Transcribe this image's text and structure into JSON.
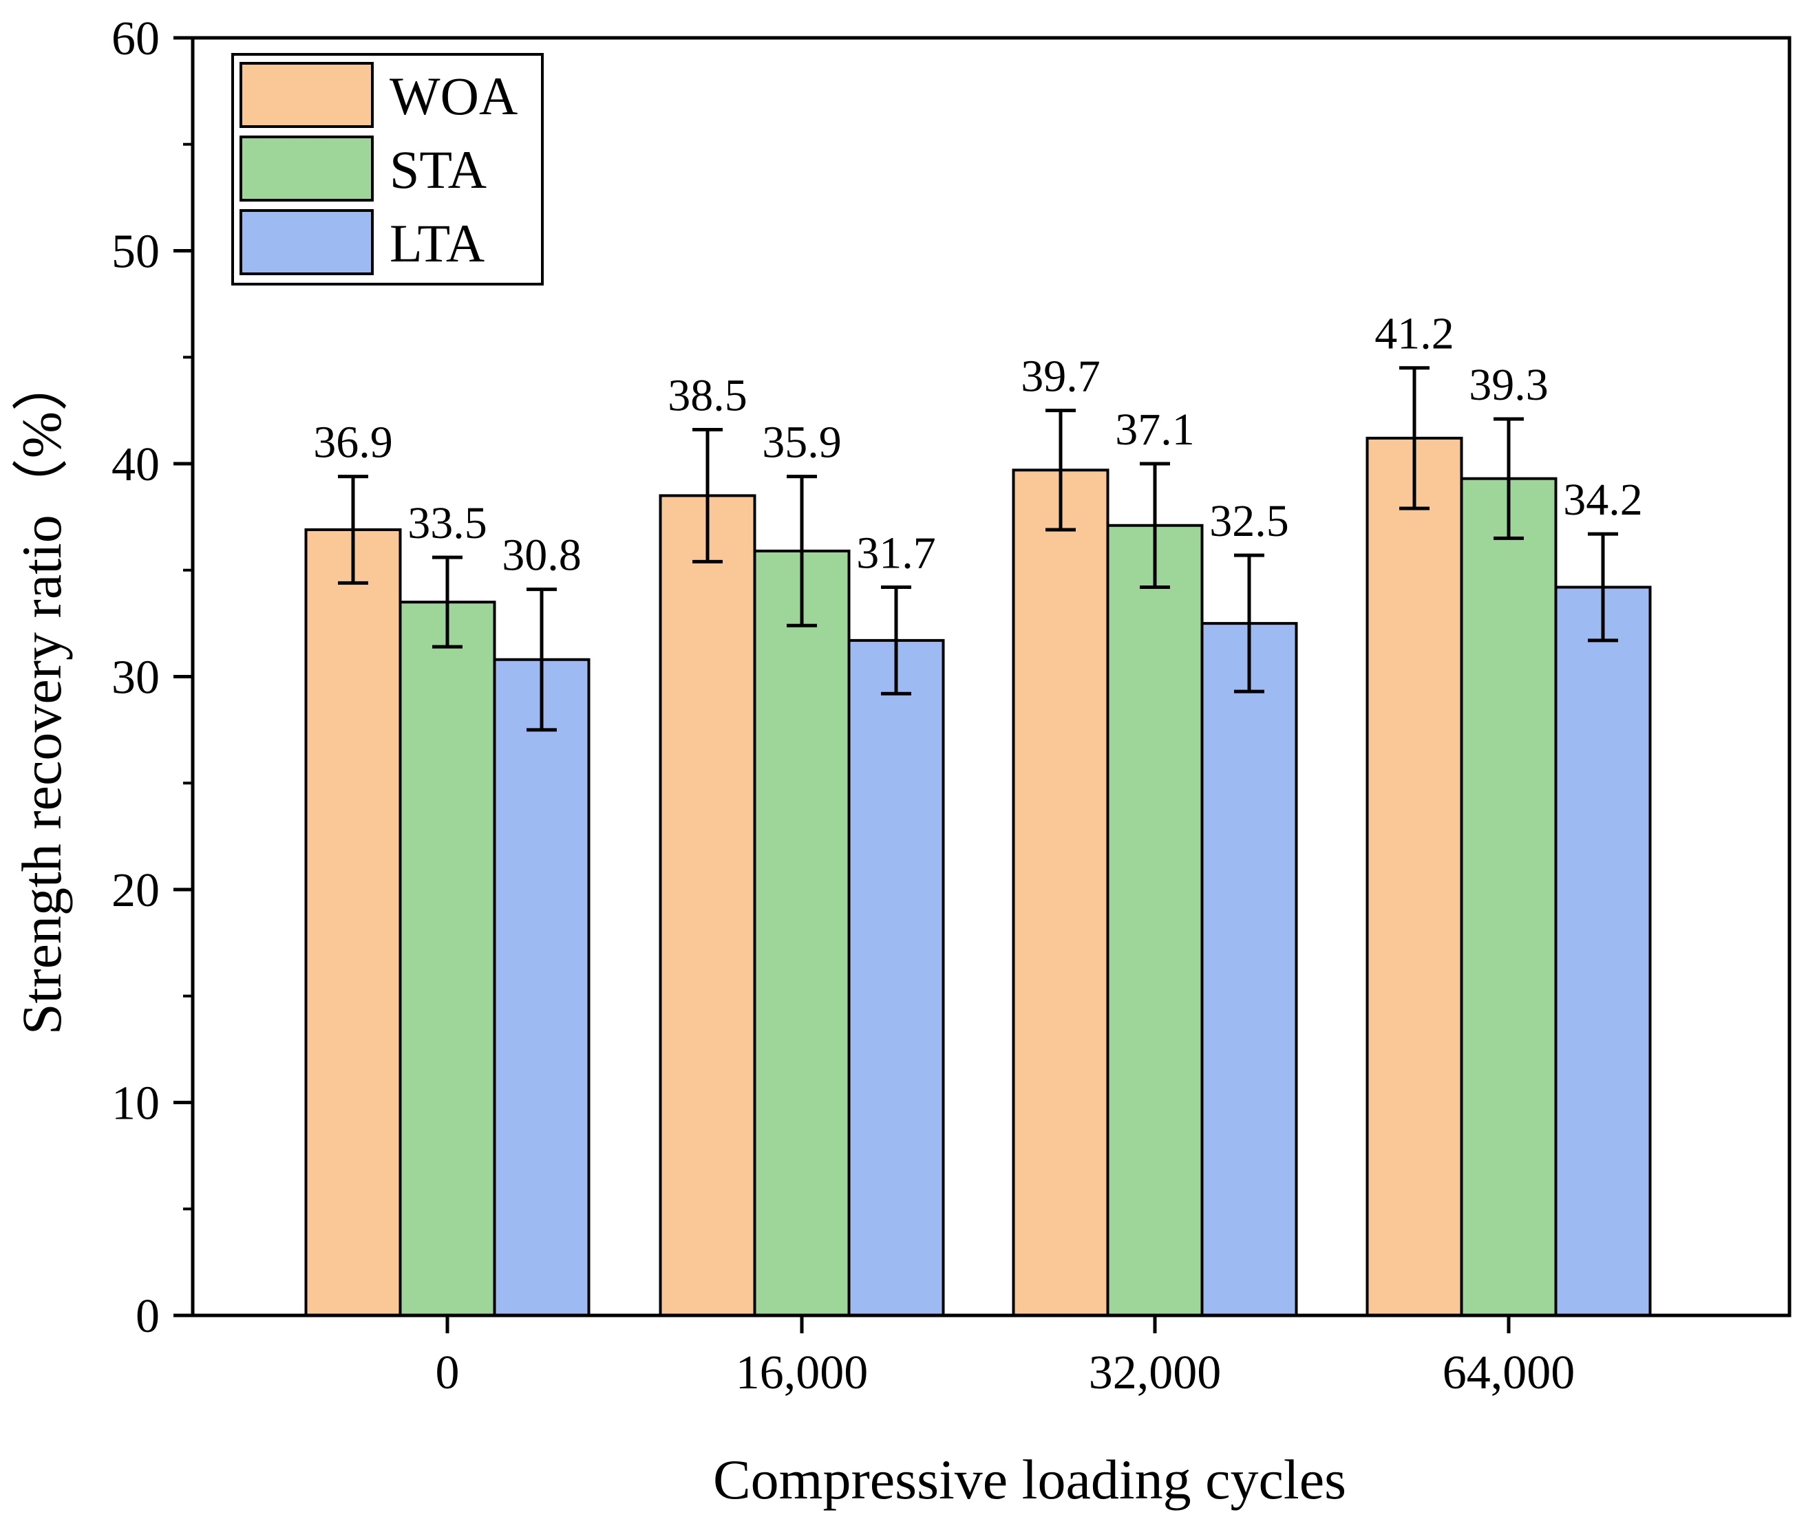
{
  "chart_data": {
    "type": "bar",
    "title": "",
    "xlabel": "Compressive loading cycles",
    "ylabel": "Strength recovery ratio（%）",
    "categories": [
      "0",
      "16,000",
      "32,000",
      "64,000"
    ],
    "ylim": [
      0,
      60
    ],
    "yticks": [
      0,
      10,
      20,
      30,
      40,
      50,
      60
    ],
    "ytick_labels": [
      "0",
      "10",
      "20",
      "30",
      "40",
      "50",
      "60"
    ],
    "legend_position": "top-left",
    "grid": false,
    "series": [
      {
        "name": "WOA",
        "color": "#f9c896",
        "values": [
          36.9,
          38.5,
          39.7,
          41.2
        ],
        "value_labels": [
          "36.9",
          "38.5",
          "39.7",
          "41.2"
        ],
        "errors": [
          2.5,
          3.1,
          2.8,
          3.3
        ]
      },
      {
        "name": "STA",
        "color": "#9ed69a",
        "values": [
          33.5,
          35.9,
          37.1,
          39.3
        ],
        "value_labels": [
          "33.5",
          "35.9",
          "37.1",
          "39.3"
        ],
        "errors": [
          2.1,
          3.5,
          2.9,
          2.8
        ]
      },
      {
        "name": "LTA",
        "color": "#9ebaf2",
        "values": [
          30.8,
          31.7,
          32.5,
          34.2
        ],
        "value_labels": [
          "30.8",
          "31.7",
          "32.5",
          "34.2"
        ],
        "errors": [
          3.3,
          2.5,
          3.2,
          2.5
        ]
      }
    ]
  }
}
